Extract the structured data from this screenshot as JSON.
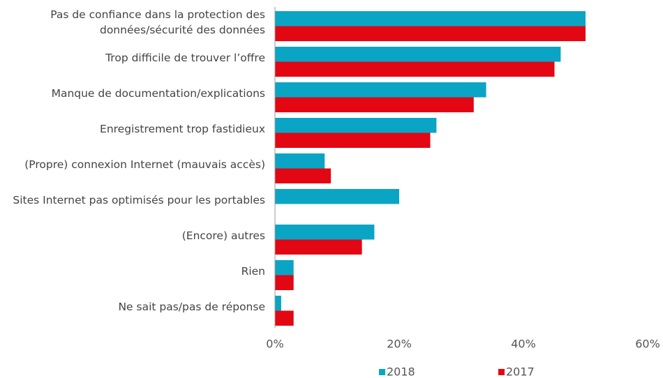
{
  "chart_data": {
    "type": "bar",
    "orientation": "horizontal",
    "categories": [
      "Pas de confiance dans la protection des\ndonnées/sécurité des données",
      "Trop difficile de trouver l’offre",
      "Manque de documentation/explications",
      "Enregistrement trop fastidieux",
      "(Propre) connexion Internet (mauvais accès)",
      "Sites Internet pas optimisés pour les portables",
      "(Encore) autres",
      "Rien",
      "Ne sait pas/pas de réponse"
    ],
    "series": [
      {
        "name": "2018",
        "color": "#0aa5c5",
        "values": [
          50,
          46,
          34,
          26,
          8,
          20,
          16,
          3,
          1
        ]
      },
      {
        "name": "2017",
        "color": "#e30613",
        "values": [
          50,
          45,
          32,
          25,
          9,
          null,
          14,
          3,
          3
        ]
      }
    ],
    "xlim": [
      0,
      60
    ],
    "xticks": [
      {
        "value": 0,
        "label": "0%"
      },
      {
        "value": 20,
        "label": "20%"
      },
      {
        "value": 40,
        "label": "40%"
      },
      {
        "value": 60,
        "label": "60%"
      }
    ],
    "legend": "bottom"
  }
}
